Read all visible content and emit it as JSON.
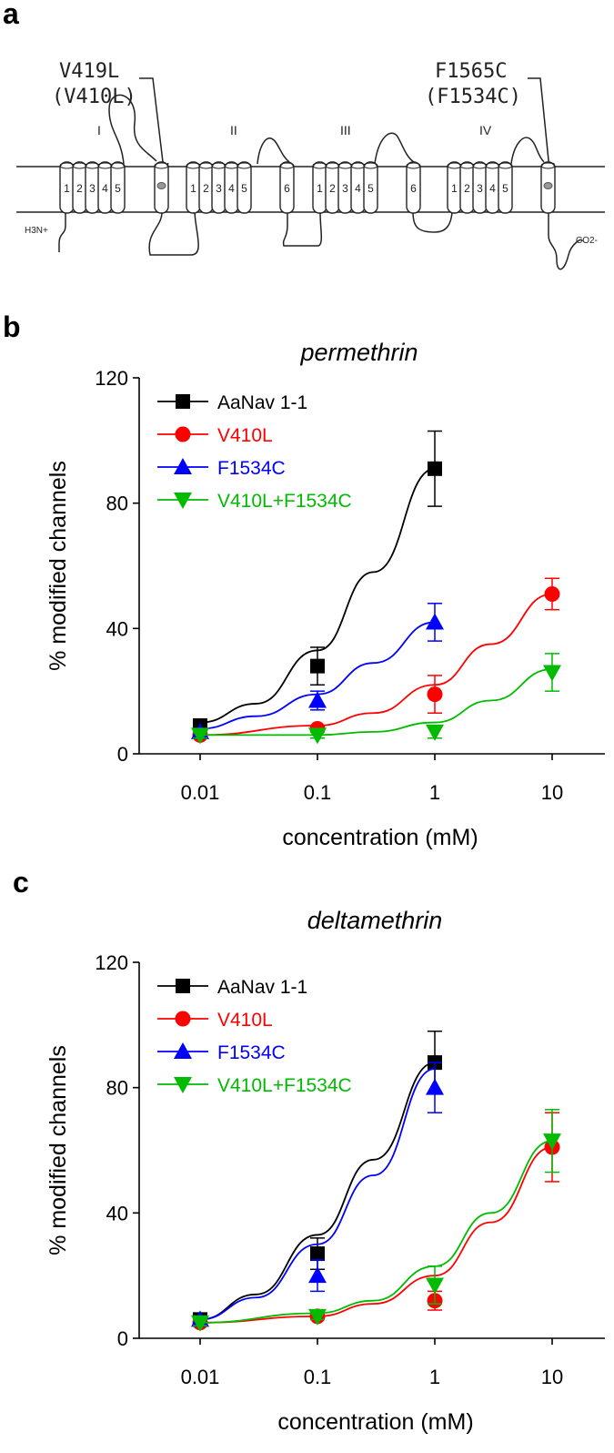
{
  "panel_a": {
    "label": "a",
    "mutation_left": {
      "line1": "V419L",
      "line2": "(V410L)"
    },
    "mutation_right": {
      "line1": "F1565C",
      "line2": "(F1534C)"
    },
    "domains": [
      "I",
      "II",
      "III",
      "IV"
    ],
    "segments_1_5": [
      "1",
      "2",
      "3",
      "4",
      "5"
    ],
    "segment_6": "6",
    "n_terminus": "H3N+",
    "c_terminus": "CO2-"
  },
  "chart_data": [
    {
      "panel": "b",
      "type": "line",
      "title": "permethrin",
      "xlabel": "concentration (mM)",
      "ylabel": "% modified channels",
      "xscale": "log",
      "xticks": [
        "0.01",
        "0.1",
        "1",
        "10"
      ],
      "yticks": [
        "0",
        "40",
        "80",
        "120"
      ],
      "ylim": [
        0,
        120
      ],
      "grid": false,
      "legend_position": "top-left",
      "series": [
        {
          "name": "AaNav 1-1",
          "color": "#000000",
          "marker": "square",
          "x": [
            0.01,
            0.1,
            1
          ],
          "y": [
            9,
            28,
            91
          ],
          "err": [
            1,
            6,
            12
          ],
          "fit": [
            [
              0.01,
              10
            ],
            [
              0.03,
              16
            ],
            [
              0.1,
              33
            ],
            [
              0.3,
              58
            ],
            [
              1,
              91
            ]
          ]
        },
        {
          "name": "V410L",
          "color": "#ff0000",
          "marker": "circle",
          "x": [
            0.01,
            0.1,
            1,
            10
          ],
          "y": [
            6,
            8,
            19,
            51
          ],
          "err": [
            1,
            1,
            6,
            5
          ],
          "fit": [
            [
              0.01,
              6
            ],
            [
              0.1,
              9
            ],
            [
              0.3,
              13
            ],
            [
              1,
              22
            ],
            [
              3,
              35
            ],
            [
              10,
              51
            ]
          ]
        },
        {
          "name": "F1534C",
          "color": "#0000ff",
          "marker": "triangle-up",
          "x": [
            0.01,
            0.1,
            1
          ],
          "y": [
            7,
            17,
            42
          ],
          "err": [
            1,
            3,
            6
          ],
          "fit": [
            [
              0.01,
              8
            ],
            [
              0.03,
              12
            ],
            [
              0.1,
              19
            ],
            [
              0.3,
              29
            ],
            [
              1,
              42
            ]
          ]
        },
        {
          "name": "V410L+F1534C",
          "color": "#00bb00",
          "marker": "triangle-down",
          "x": [
            0.01,
            0.1,
            1,
            10
          ],
          "y": [
            6,
            6,
            7,
            26
          ],
          "err": [
            1,
            1,
            2,
            6
          ],
          "fit": [
            [
              0.01,
              6
            ],
            [
              0.1,
              6
            ],
            [
              0.3,
              7
            ],
            [
              1,
              10
            ],
            [
              3,
              17
            ],
            [
              10,
              27
            ]
          ]
        }
      ]
    },
    {
      "panel": "c",
      "type": "line",
      "title": "deltamethrin",
      "xlabel": "concentration (mM)",
      "ylabel": "% modified channels",
      "xscale": "log",
      "xticks": [
        "0.01",
        "0.1",
        "1",
        "10"
      ],
      "yticks": [
        "0",
        "40",
        "80",
        "120"
      ],
      "ylim": [
        0,
        120
      ],
      "grid": false,
      "legend_position": "top-left",
      "series": [
        {
          "name": "AaNav 1-1",
          "color": "#000000",
          "marker": "square",
          "x": [
            0.01,
            0.1,
            1
          ],
          "y": [
            6,
            27,
            88
          ],
          "err": [
            1,
            5,
            10
          ],
          "fit": [
            [
              0.01,
              6
            ],
            [
              0.03,
              14
            ],
            [
              0.1,
              33
            ],
            [
              0.3,
              57
            ],
            [
              1,
              88
            ]
          ]
        },
        {
          "name": "V410L",
          "color": "#ff0000",
          "marker": "circle",
          "x": [
            0.01,
            0.1,
            1,
            10
          ],
          "y": [
            5,
            7,
            12,
            61
          ],
          "err": [
            1,
            1,
            3,
            11
          ],
          "fit": [
            [
              0.01,
              5
            ],
            [
              0.1,
              7
            ],
            [
              0.3,
              11
            ],
            [
              1,
              20
            ],
            [
              3,
              37
            ],
            [
              10,
              61
            ]
          ]
        },
        {
          "name": "F1534C",
          "color": "#0000ff",
          "marker": "triangle-up",
          "x": [
            0.01,
            0.1,
            1
          ],
          "y": [
            6,
            20,
            80
          ],
          "err": [
            1,
            5,
            8
          ],
          "fit": [
            [
              0.01,
              6
            ],
            [
              0.03,
              13
            ],
            [
              0.1,
              30
            ],
            [
              0.3,
              52
            ],
            [
              1,
              86
            ]
          ]
        },
        {
          "name": "V410L+F1534C",
          "color": "#00bb00",
          "marker": "triangle-down",
          "x": [
            0.01,
            0.1,
            1,
            10
          ],
          "y": [
            5,
            7,
            17,
            63
          ],
          "err": [
            1,
            1,
            6,
            10
          ],
          "fit": [
            [
              0.01,
              5
            ],
            [
              0.1,
              8
            ],
            [
              0.3,
              12
            ],
            [
              1,
              23
            ],
            [
              3,
              40
            ],
            [
              10,
              63
            ]
          ]
        }
      ]
    }
  ]
}
